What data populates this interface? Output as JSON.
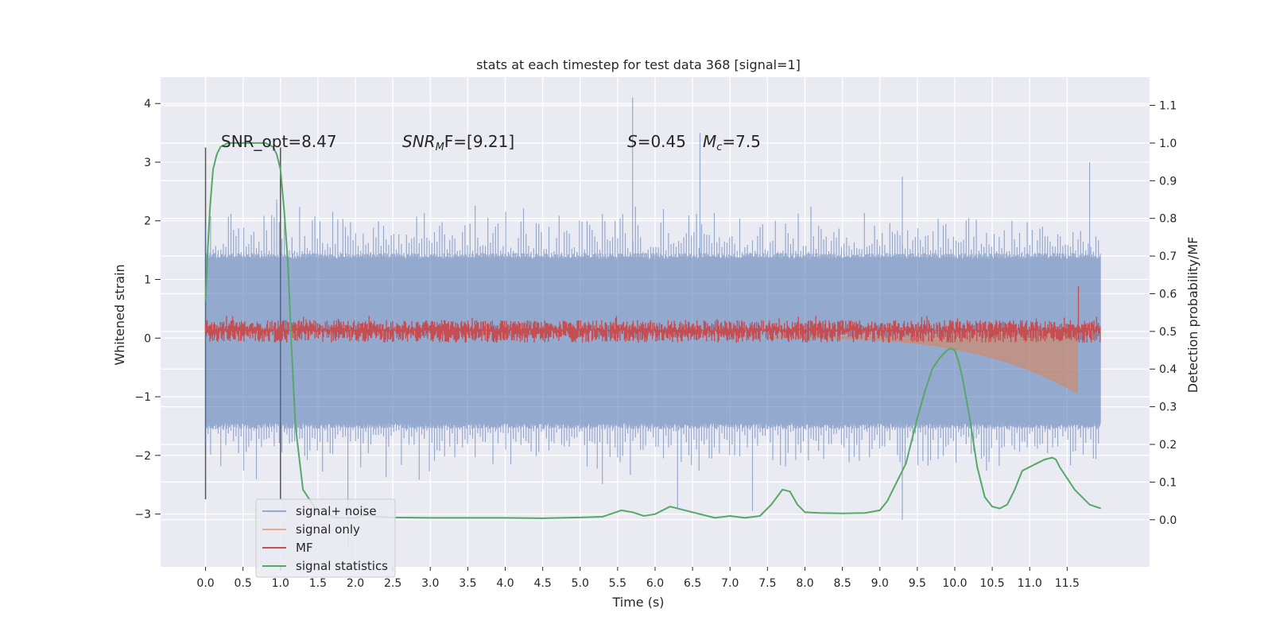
{
  "chart_data": {
    "type": "line",
    "title": "stats at each timestep for test data 368 [signal=1]",
    "xlabel": "Time (s)",
    "ylabel_left": "Whitened strain",
    "ylabel_right": "Detection probability/MF",
    "xlim": [
      -0.6,
      12.6
    ],
    "ylim_left": [
      -3.9,
      4.45
    ],
    "ylim_right": [
      -0.125,
      1.175
    ],
    "x_ticks": [
      "0.0",
      "0.5",
      "1.0",
      "1.5",
      "2.0",
      "2.5",
      "3.0",
      "3.5",
      "4.0",
      "4.5",
      "5.0",
      "5.5",
      "6.0",
      "6.5",
      "7.0",
      "7.5",
      "8.0",
      "8.5",
      "9.0",
      "9.5",
      "10.0",
      "10.5",
      "11.0",
      "11.5"
    ],
    "x_tick_values": [
      0,
      0.5,
      1,
      1.5,
      2,
      2.5,
      3,
      3.5,
      4,
      4.5,
      5,
      5.5,
      6,
      6.5,
      7,
      7.5,
      8,
      8.5,
      9,
      9.5,
      10,
      10.5,
      11,
      11.5
    ],
    "y_ticks_left": [
      "4",
      "3",
      "2",
      "1",
      "0",
      "−1",
      "−2",
      "−3"
    ],
    "y_tick_values_left": [
      4,
      3,
      2,
      1,
      0,
      -1,
      -2,
      -3
    ],
    "y_ticks_right": [
      "1.1",
      "1.0",
      "0.9",
      "0.8",
      "0.7",
      "0.6",
      "0.5",
      "0.4",
      "0.3",
      "0.2",
      "0.1",
      "0.0"
    ],
    "y_tick_values_right": [
      1.1,
      1.0,
      0.9,
      0.8,
      0.7,
      0.6,
      0.5,
      0.4,
      0.3,
      0.2,
      0.1,
      0.0
    ],
    "grid": true,
    "legend_position": "lower-left",
    "annotations": {
      "snr_opt": "SNR_opt=8.47",
      "snr_mf_sym": "SNR",
      "snr_mf_sub": "M",
      "snr_mf_rest": "F=[9.21]",
      "spin_sym": "S",
      "spin_rest": "=0.45",
      "mc_sym": "M",
      "mc_sub": "c",
      "mc_rest": "=7.5"
    },
    "vertical_markers": [
      0.0,
      1.0
    ],
    "series": [
      {
        "name": "signal+ noise",
        "color": "#4c72b0",
        "axis": "left",
        "t_range": [
          0.0,
          11.95
        ],
        "envelope": {
          "typical": 1.45,
          "peak_max": 4.1,
          "peak_min": -3.1
        },
        "notable_spikes": [
          [
            5.7,
            4.1
          ],
          [
            6.6,
            3.5
          ],
          [
            9.3,
            2.75
          ],
          [
            11.8,
            3.0
          ],
          [
            9.3,
            -3.1
          ],
          [
            7.3,
            -2.95
          ],
          [
            1.9,
            -3.55
          ],
          [
            6.3,
            -2.9
          ]
        ]
      },
      {
        "name": "signal only",
        "color": "#dd8452",
        "axis": "left",
        "chirp": {
          "start": 7.5,
          "merger": 11.65,
          "peak_amplitude": 0.95
        }
      },
      {
        "name": "MF",
        "color": "#c44e52",
        "axis": "right",
        "t_range": [
          0.0,
          11.95
        ],
        "baseline": 0.5,
        "band": [
          0.47,
          0.53
        ],
        "peak": [
          11.65,
          0.62
        ]
      },
      {
        "name": "signal statistics",
        "color": "#55a868",
        "axis": "right",
        "x": [
          0.0,
          0.03,
          0.06,
          0.1,
          0.15,
          0.2,
          0.3,
          0.5,
          0.7,
          0.8,
          0.9,
          0.95,
          1.0,
          1.05,
          1.1,
          1.15,
          1.2,
          1.3,
          1.5,
          1.75,
          2.0,
          2.15,
          2.3,
          2.5,
          3.0,
          4.0,
          4.5,
          5.0,
          5.3,
          5.55,
          5.7,
          5.85,
          6.0,
          6.2,
          6.5,
          6.8,
          7.0,
          7.2,
          7.4,
          7.55,
          7.7,
          7.8,
          7.9,
          8.0,
          8.2,
          8.5,
          8.8,
          9.0,
          9.1,
          9.2,
          9.35,
          9.5,
          9.6,
          9.7,
          9.8,
          9.9,
          9.95,
          10.0,
          10.05,
          10.1,
          10.2,
          10.3,
          10.4,
          10.5,
          10.6,
          10.7,
          10.8,
          10.9,
          11.0,
          11.1,
          11.2,
          11.3,
          11.35,
          11.4,
          11.5,
          11.6,
          11.8,
          11.95
        ],
        "y": [
          0.58,
          0.72,
          0.83,
          0.93,
          0.97,
          0.99,
          1.0,
          1.0,
          1.0,
          1.0,
          0.99,
          0.97,
          0.93,
          0.82,
          0.68,
          0.45,
          0.25,
          0.08,
          0.02,
          0.005,
          0.005,
          0.013,
          0.008,
          0.006,
          0.005,
          0.005,
          0.004,
          0.006,
          0.008,
          0.025,
          0.02,
          0.01,
          0.015,
          0.035,
          0.02,
          0.005,
          0.01,
          0.005,
          0.01,
          0.04,
          0.08,
          0.075,
          0.04,
          0.02,
          0.018,
          0.017,
          0.018,
          0.025,
          0.05,
          0.09,
          0.15,
          0.27,
          0.34,
          0.4,
          0.43,
          0.45,
          0.455,
          0.45,
          0.42,
          0.38,
          0.27,
          0.14,
          0.06,
          0.035,
          0.03,
          0.04,
          0.08,
          0.13,
          0.14,
          0.15,
          0.16,
          0.165,
          0.16,
          0.14,
          0.11,
          0.08,
          0.04,
          0.03
        ]
      }
    ]
  }
}
